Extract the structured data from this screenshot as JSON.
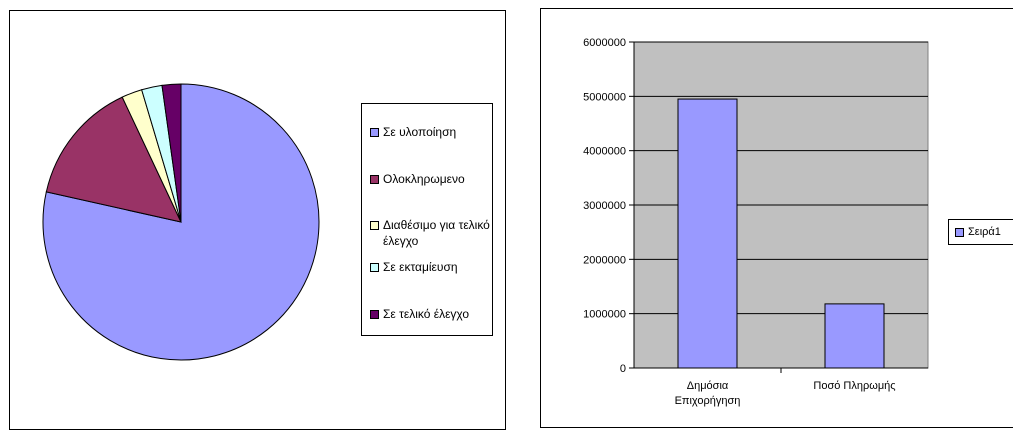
{
  "pie_chart": {
    "legend": [
      {
        "label": "Σε υλοποίηση",
        "color": "#9999ff"
      },
      {
        "label": "Ολοκληρωμενο",
        "color": "#993366"
      },
      {
        "label": "Διαθέσιμο για τελικό έλεγχο",
        "color": "#ffffcc"
      },
      {
        "label": "Σε εκταμίευση",
        "color": "#ccffff"
      },
      {
        "label": "Σε τελικό έλεγχο",
        "color": "#660066"
      }
    ]
  },
  "bar_chart": {
    "legend": [
      {
        "label": "Σειρά1",
        "color": "#9999ff"
      }
    ]
  },
  "chart_data": [
    {
      "type": "pie",
      "categories": [
        "Σε υλοποίηση",
        "Ολοκληρωμενο",
        "Διαθέσιμο για τελικό έλεγχο",
        "Σε εκταμίευση",
        "Σε τελικό έλεγχο"
      ],
      "values": [
        78.5,
        14.5,
        2.4,
        2.4,
        2.2
      ],
      "colors": [
        "#9999ff",
        "#993366",
        "#ffffcc",
        "#ccffff",
        "#660066"
      ],
      "legend_position": "right"
    },
    {
      "type": "bar",
      "categories": [
        "Δημόσια Επιχορήγηση",
        "Ποσό Πληρωμής"
      ],
      "series": [
        {
          "name": "Σειρά1",
          "values": [
            4950000,
            1180000
          ]
        }
      ],
      "ylim": [
        0,
        6000000
      ],
      "yticks": [
        0,
        1000000,
        2000000,
        3000000,
        4000000,
        5000000,
        6000000
      ],
      "ytick_labels": [
        "0",
        "1000000",
        "2000000",
        "3000000",
        "4000000",
        "5000000",
        "6000000"
      ],
      "grid": true,
      "plot_background": "#c0c0c0",
      "bar_color": "#9999ff",
      "legend_position": "right"
    }
  ]
}
